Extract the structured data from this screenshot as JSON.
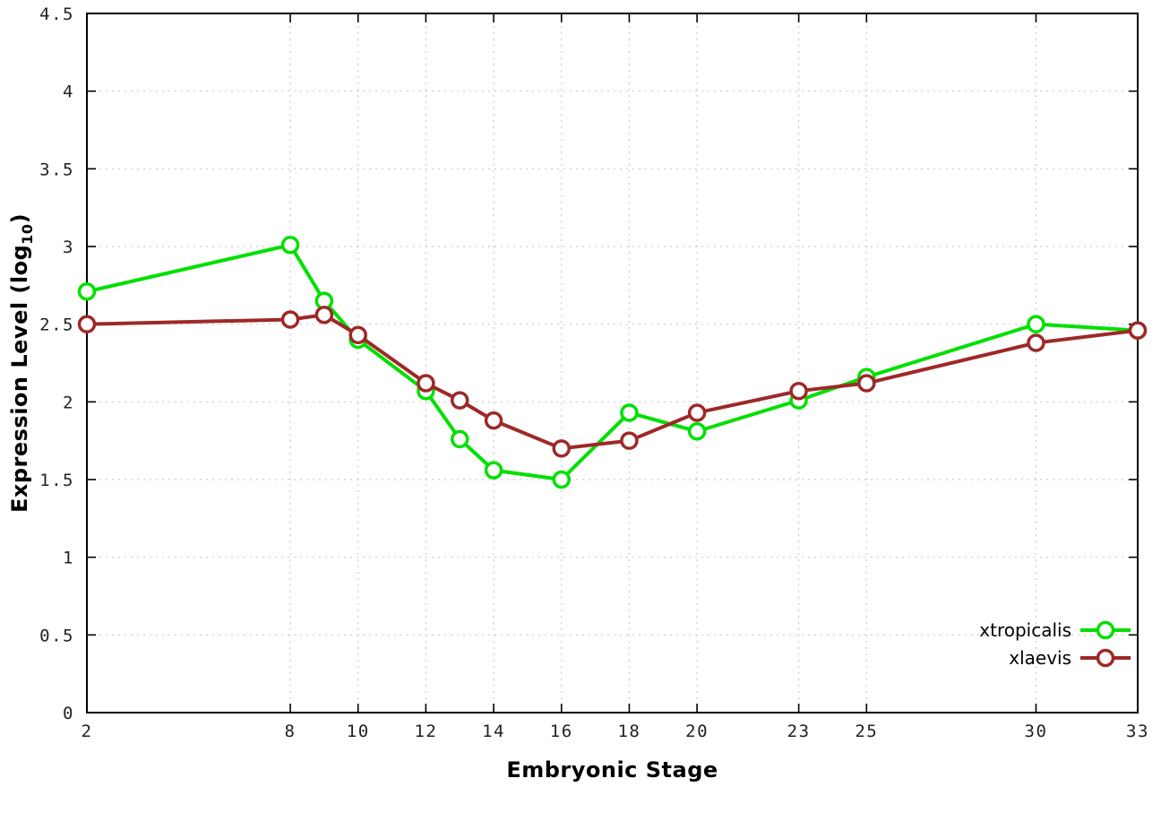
{
  "figure": {
    "background": "#ffffff",
    "frame_color": "#000000",
    "grid_color": "#cccccc",
    "tick_label_color": "#222222",
    "xlabel": "Embryonic Stage",
    "ylabel": {
      "prefix": "Expression Level (log",
      "sub": "10",
      "suffix": ")"
    }
  },
  "chart_data": {
    "type": "line",
    "title": "",
    "xlabel": "Embryonic Stage",
    "ylabel": "Expression Level (log10)",
    "xlim": [
      2,
      33
    ],
    "ylim": [
      0,
      4.5
    ],
    "grid": true,
    "legend_position": "bottom-right",
    "x_tick_labels": [
      "2",
      "8",
      "10",
      "12",
      "14",
      "16",
      "18",
      "20",
      "23",
      "25",
      "30",
      "33"
    ],
    "y_tick_labels": [
      "0",
      "0.5",
      "1",
      "1.5",
      "2",
      "2.5",
      "3",
      "3.5",
      "4",
      "4.5"
    ],
    "x": [
      2,
      8,
      9,
      10,
      12,
      13,
      14,
      16,
      18,
      20,
      23,
      25,
      30,
      33
    ],
    "series": [
      {
        "name": "xtropicalis",
        "color": "#00e000",
        "marker": "open-circle",
        "values": [
          2.71,
          3.01,
          2.65,
          2.4,
          2.07,
          1.76,
          1.56,
          1.5,
          1.93,
          1.81,
          2.01,
          2.16,
          2.5,
          2.46
        ]
      },
      {
        "name": "xlaevis",
        "color": "#9e2828",
        "marker": "open-circle",
        "values": [
          2.5,
          2.53,
          2.56,
          2.43,
          2.12,
          2.01,
          1.88,
          1.7,
          1.75,
          1.93,
          2.07,
          2.12,
          2.38,
          2.46
        ]
      }
    ]
  }
}
